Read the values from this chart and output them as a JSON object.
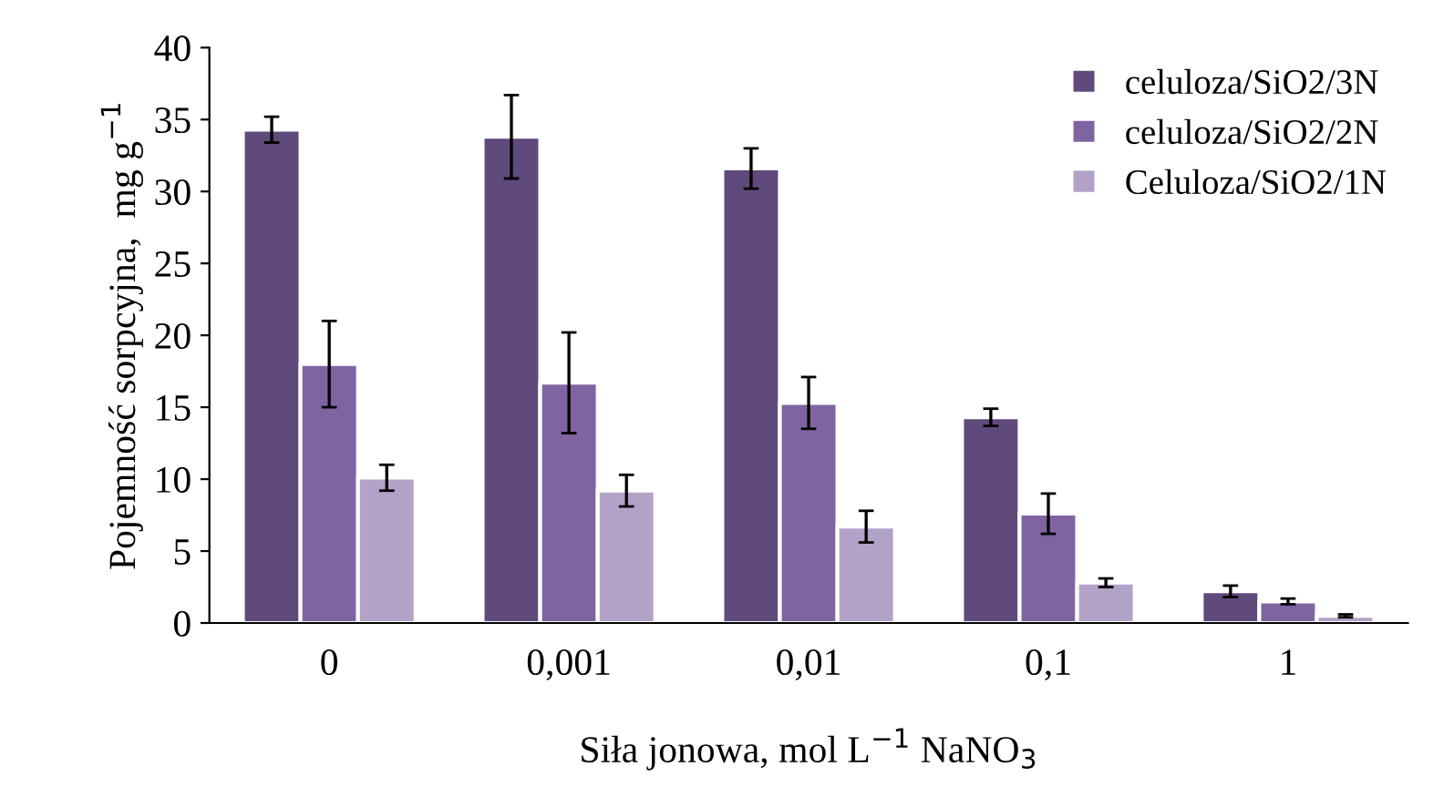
{
  "chart_data": {
    "type": "bar",
    "xlabel": "Siła jonowa, mol L$^{−1}$ NaNO$_{3}$",
    "ylabel": "Pojemność sorpcyjna,  mg g$^{−1}$",
    "categories": [
      "0",
      "0,001",
      "0,01",
      "0,1",
      "1"
    ],
    "series": [
      {
        "name": "celuloza/SiO2/3N",
        "color": "#604a7b",
        "values": [
          34.3,
          33.8,
          31.6,
          14.3,
          2.2
        ],
        "errors": [
          0.9,
          2.9,
          1.4,
          0.6,
          0.4
        ]
      },
      {
        "name": "celuloza/SiO2/2N",
        "color": "#8064a2",
        "values": [
          18.0,
          16.7,
          15.3,
          7.6,
          1.5
        ],
        "errors": [
          3.0,
          3.5,
          1.8,
          1.4,
          0.2
        ]
      },
      {
        "name": "Celuloza/SiO2/1N",
        "color": "#b3a2c7",
        "values": [
          10.1,
          9.2,
          6.7,
          2.8,
          0.5
        ],
        "errors": [
          0.9,
          1.1,
          1.1,
          0.3,
          0.1
        ]
      }
    ],
    "ylim": [
      0,
      40
    ],
    "yticks": [
      0,
      5,
      10,
      15,
      20,
      25,
      30,
      35,
      40
    ],
    "grid": false,
    "legend": "top right"
  }
}
